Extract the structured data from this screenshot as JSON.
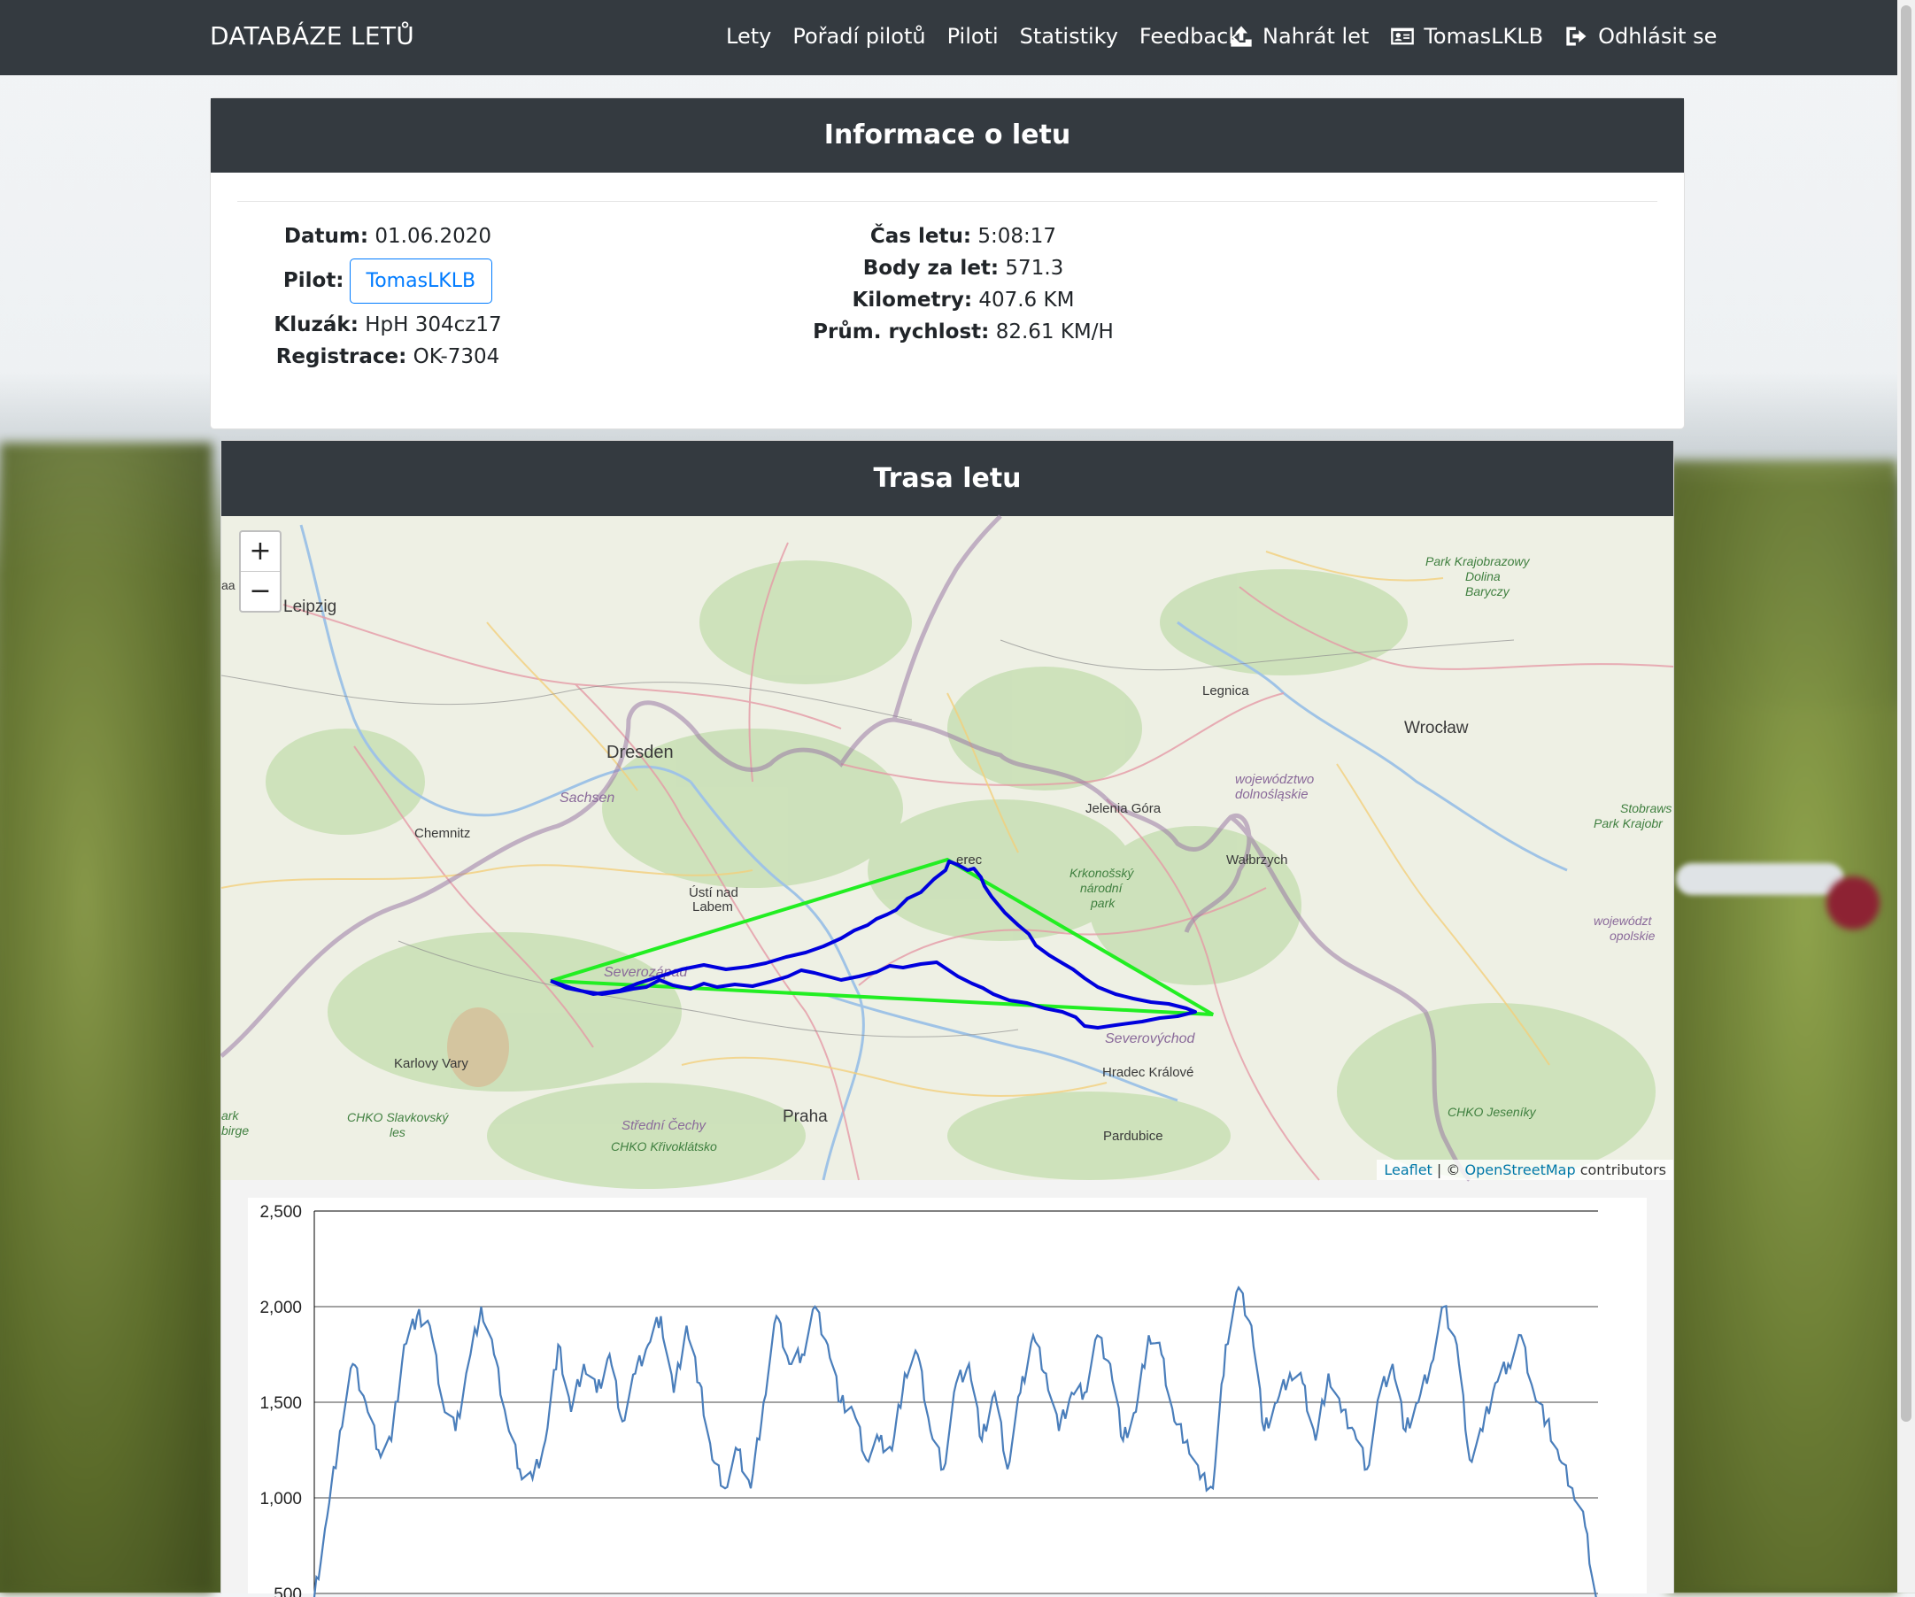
{
  "navbar": {
    "brand": "DATABÁZE LETŮ",
    "links": [
      "Lety",
      "Pořadí pilotů",
      "Piloti",
      "Statistiky",
      "Feedback"
    ],
    "upload": "Nahrát let",
    "user": "TomasLKLB",
    "logout": "Odhlásit se"
  },
  "info": {
    "header": "Informace o letu",
    "date_label": "Datum:",
    "date": "01.06.2020",
    "pilot_label": "Pilot:",
    "pilot": "TomasLKLB",
    "glider_label": "Kluzák:",
    "glider": "HpH 304cz17",
    "reg_label": "Registrace:",
    "reg": "OK-7304",
    "time_label": "Čas letu:",
    "time": "5:08:17",
    "points_label": "Body za let:",
    "points": "571.3",
    "km_label": "Kilometry:",
    "km": "407.6 KM",
    "speed_label": "Prům. rychlost:",
    "speed": "82.61 KM/H"
  },
  "route": {
    "header": "Trasa letu",
    "zoom_in": "+",
    "zoom_out": "−",
    "attribution_leaflet": "Leaflet",
    "attribution_sep": " | © ",
    "attribution_osm": "OpenStreetMap",
    "attribution_tail": " contributors",
    "labels": {
      "leipzig": "Leipzig",
      "dresden": "Dresden",
      "sachsen": "Sachsen",
      "chemnitz": "Chemnitz",
      "usti": "Ústí nad\nLabem",
      "liberec": "erec",
      "jelenia": "Jelenia Góra",
      "legnica": "Legnica",
      "wroclaw": "Wrocław",
      "dolnoslaskie": "województwo\ndolnośląskie",
      "walbrzych": "Wałbrzych",
      "krkonossky": "Krkonošský\nnárodní\npark",
      "severozapad": "Severozápad",
      "severovychod": "Severovýchod",
      "karlovy": "Karlovy Vary",
      "hradec": "Hradec Králové",
      "praha": "Praha",
      "pardubice": "Pardubice",
      "slavkovsky": "CHKO Slavkovský\nles",
      "strednicechy": "Střední Čechy",
      "krivoklatsko": "CHKO Křivoklátsko",
      "jeseniky": "CHKO Jeseníky",
      "krajobrazowy": "Park Krajobrazowy\nDolina\nBaryczy",
      "stobraws": "Stobraws\nPark Krajobr",
      "opolskie": "województ\nopolskie",
      "ark": "ark\nbirge",
      "aa": "aa"
    },
    "colors": {
      "track": "#0000dd",
      "task": "#22ee22"
    }
  },
  "chart_data": {
    "type": "line",
    "y_ticks": [
      "2,500",
      "2,000",
      "1,500",
      "1,000",
      "500"
    ],
    "ylim": [
      500,
      2500
    ],
    "xlim": [
      0,
      100
    ],
    "color": "#4a7ebb",
    "series": [
      {
        "x": [
          0,
          1,
          2,
          3,
          4,
          5,
          6,
          7,
          8,
          9,
          10,
          11,
          12,
          13,
          14,
          15,
          16,
          17,
          18,
          19,
          20,
          21,
          22,
          23,
          24,
          25,
          26,
          27,
          28,
          29,
          30,
          31,
          32,
          33,
          34,
          35,
          36,
          37,
          38,
          39,
          40,
          41,
          42,
          43,
          44,
          45,
          46,
          47,
          48,
          49,
          50,
          51,
          52,
          53,
          54,
          55,
          56,
          57,
          58,
          59,
          60,
          61,
          62,
          63,
          64,
          65,
          66,
          67,
          68,
          69,
          70,
          71,
          72,
          73,
          74,
          75,
          76,
          77,
          78,
          79,
          80,
          81,
          82,
          83,
          84,
          85,
          86,
          87,
          88,
          89,
          90,
          91,
          92,
          93,
          94,
          95,
          96,
          97,
          98,
          99,
          100
        ],
        "values": [
          480,
          900,
          1350,
          1700,
          1500,
          1250,
          1300,
          1800,
          1950,
          1900,
          1500,
          1350,
          1700,
          2000,
          1750,
          1400,
          1150,
          1100,
          1300,
          1800,
          1450,
          1700,
          1550,
          1750,
          1400,
          1650,
          1800,
          1950,
          1550,
          1900,
          1600,
          1200,
          1050,
          1250,
          1050,
          1500,
          1950,
          1700,
          1750,
          2000,
          1800,
          1500,
          1450,
          1200,
          1300,
          1250,
          1650,
          1750,
          1350,
          1150,
          1600,
          1700,
          1300,
          1550,
          1150,
          1550,
          1850,
          1650,
          1350,
          1550,
          1550,
          1850,
          1700,
          1300,
          1450,
          1850,
          1750,
          1400,
          1300,
          1100,
          1050,
          1800,
          2100,
          1900,
          1350,
          1500,
          1650,
          1600,
          1300,
          1650,
          1450,
          1350,
          1150,
          1550,
          1700,
          1350,
          1500,
          1700,
          2000,
          1800,
          1200,
          1350,
          1600,
          1700,
          1850,
          1550,
          1400,
          1200,
          1050,
          850,
          400
        ]
      }
    ]
  }
}
